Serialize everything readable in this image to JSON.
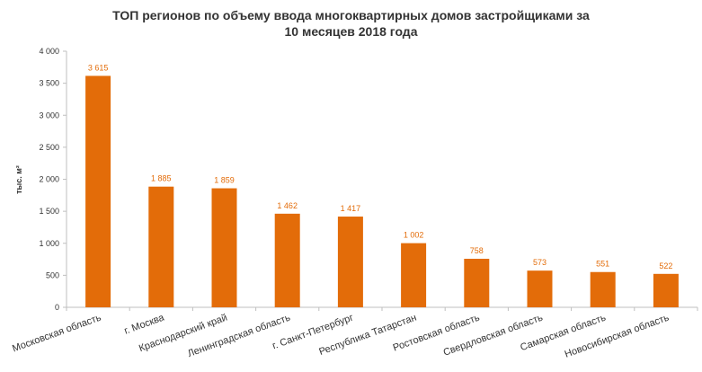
{
  "chart_data": {
    "type": "bar",
    "title_line1": "ТОП регионов по объему ввода многоквартирных домов застройщиками за",
    "title_line2": "10 месяцев 2018 года",
    "ylabel": "тыс. м²",
    "xlabel": "",
    "ylim": [
      0,
      4000
    ],
    "yticks": [
      0,
      500,
      1000,
      1500,
      2000,
      2500,
      3000,
      3500,
      4000
    ],
    "ytick_labels": [
      "0",
      "500",
      "1 000",
      "1 500",
      "2 000",
      "2 500",
      "3 000",
      "3 500",
      "4 000"
    ],
    "categories": [
      "Московская область",
      "г. Москва",
      "Краснодарский край",
      "Ленинградская область",
      "г. Санкт-Петербург",
      "Республика Татарстан",
      "Ростовская область",
      "Свердловская область",
      "Самарская область",
      "Новосибирская область"
    ],
    "values": [
      3615,
      1885,
      1859,
      1462,
      1417,
      1002,
      758,
      573,
      551,
      522
    ],
    "value_labels": [
      "3 615",
      "1 885",
      "1 859",
      "1 462",
      "1 417",
      "1 002",
      "758",
      "573",
      "551",
      "522"
    ],
    "bar_color": "#E36C09",
    "grid": false,
    "legend": "none"
  }
}
